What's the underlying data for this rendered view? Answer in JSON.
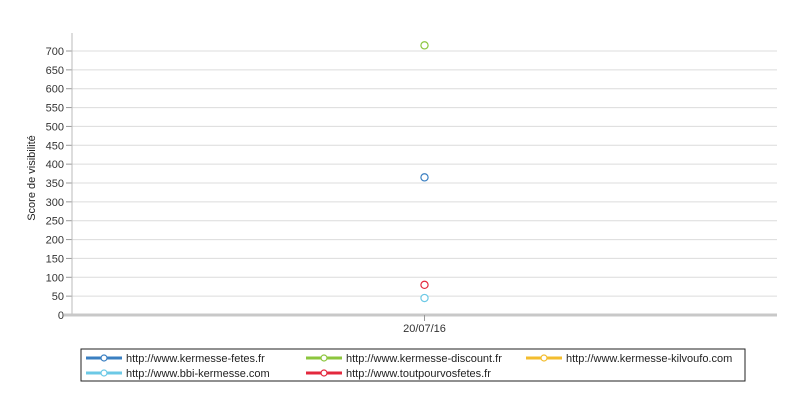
{
  "chart_data": {
    "type": "scatter",
    "ylabel": "Score de visibilité",
    "xlabel": "",
    "categories": [
      "20/07/16"
    ],
    "ylim": [
      0,
      700
    ],
    "yticks": [
      0,
      50,
      100,
      150,
      200,
      250,
      300,
      350,
      400,
      450,
      500,
      550,
      600,
      650,
      700
    ],
    "grid": true,
    "legend_position": "bottom",
    "series": [
      {
        "name": "http://www.kermesse-fetes.fr",
        "color": "#3a7fc1",
        "values": [
          365
        ]
      },
      {
        "name": "http://www.kermesse-discount.fr",
        "color": "#8cc63e",
        "values": [
          715
        ]
      },
      {
        "name": "http://www.kermesse-kilvoufo.com",
        "color": "#f3bd2e",
        "values": [
          null
        ]
      },
      {
        "name": "http://www.bbi-kermesse.com",
        "color": "#6cc9e6",
        "values": [
          45
        ]
      },
      {
        "name": "http://www.toutpourvosfetes.fr",
        "color": "#e3283d",
        "values": [
          80
        ]
      }
    ]
  }
}
